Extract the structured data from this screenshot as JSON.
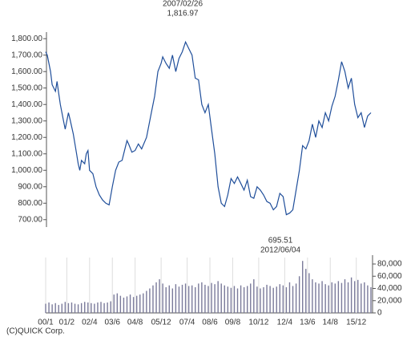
{
  "chart_data": [
    {
      "type": "line",
      "color": "#1f4e9a",
      "annotations": [
        {
          "lines": [
            "2007/02/26",
            "1,816.97"
          ]
        }
      ],
      "x": [
        0,
        1,
        3,
        4,
        6,
        7,
        8,
        9,
        11,
        12,
        14,
        15,
        17,
        19,
        20,
        21,
        22,
        24,
        25,
        26,
        27,
        29,
        31,
        33,
        35,
        37,
        39,
        41,
        43,
        45,
        47,
        48,
        50,
        51,
        53,
        55,
        57,
        59,
        62,
        65,
        67,
        69,
        71,
        72,
        74,
        76,
        78,
        80,
        82,
        84,
        86,
        88,
        90,
        92,
        94,
        96,
        98,
        100,
        102,
        104,
        106,
        108,
        110,
        112,
        114,
        116,
        118,
        120,
        122,
        124,
        126,
        128,
        130,
        132,
        134,
        136,
        138,
        140,
        142,
        144,
        146,
        148,
        150,
        152,
        154,
        156,
        158,
        160,
        162,
        164,
        166,
        168,
        170,
        172,
        174,
        176,
        178,
        180,
        182,
        184,
        186,
        188,
        190,
        192,
        194,
        196,
        198,
        200
      ],
      "values": [
        1720,
        1700,
        1600,
        1520,
        1480,
        1540,
        1470,
        1400,
        1300,
        1250,
        1350,
        1310,
        1220,
        1100,
        1040,
        1000,
        1060,
        1040,
        1100,
        1120,
        1000,
        980,
        900,
        850,
        820,
        800,
        790,
        900,
        1000,
        1050,
        1060,
        1100,
        1180,
        1160,
        1110,
        1120,
        1160,
        1130,
        1200,
        1350,
        1450,
        1600,
        1650,
        1690,
        1650,
        1620,
        1700,
        1600,
        1680,
        1720,
        1780,
        1740,
        1700,
        1560,
        1550,
        1400,
        1350,
        1400,
        1250,
        1100,
        900,
        800,
        780,
        850,
        950,
        920,
        960,
        920,
        880,
        940,
        840,
        830,
        900,
        880,
        850,
        810,
        800,
        760,
        780,
        860,
        840,
        730,
        740,
        760,
        880,
        1000,
        1150,
        1130,
        1180,
        1280,
        1200,
        1300,
        1260,
        1350,
        1300,
        1390,
        1450,
        1550,
        1660,
        1600,
        1500,
        1560,
        1400,
        1320,
        1350,
        1260,
        1330,
        1350
      ],
      "xlim": [
        0,
        201
      ],
      "ylim": [
        655,
        1840
      ],
      "yticks": [
        {
          "value": 700,
          "label": "700.00"
        },
        {
          "value": 800,
          "label": "800.00"
        },
        {
          "value": 900,
          "label": "900.00"
        },
        {
          "value": 1000,
          "label": "1,000.00"
        },
        {
          "value": 1100,
          "label": "1,100.00"
        },
        {
          "value": 1200,
          "label": "1,200.00"
        },
        {
          "value": 1300,
          "label": "1,300.00"
        },
        {
          "value": 1400,
          "label": "1,400.00"
        },
        {
          "value": 1500,
          "label": "1,500.00"
        },
        {
          "value": 1600,
          "label": "1,600.00"
        },
        {
          "value": 1700,
          "label": "1,700.00"
        },
        {
          "value": 1800,
          "label": "1,800.00"
        }
      ]
    },
    {
      "type": "bar",
      "color": "#7a7a9a",
      "annotations": [
        {
          "lines": [
            "695.51",
            "2012/06/04"
          ]
        }
      ],
      "x": [
        0,
        2,
        4,
        6,
        8,
        10,
        12,
        14,
        16,
        18,
        20,
        22,
        24,
        26,
        28,
        30,
        32,
        34,
        36,
        38,
        40,
        42,
        44,
        46,
        48,
        50,
        52,
        54,
        56,
        58,
        60,
        62,
        64,
        66,
        68,
        70,
        72,
        74,
        76,
        78,
        80,
        82,
        84,
        86,
        88,
        90,
        92,
        94,
        96,
        98,
        100,
        102,
        104,
        106,
        108,
        110,
        112,
        114,
        116,
        118,
        120,
        122,
        124,
        126,
        128,
        130,
        132,
        134,
        136,
        138,
        140,
        142,
        144,
        146,
        148,
        150,
        152,
        154,
        156,
        158,
        160,
        162,
        164,
        166,
        168,
        170,
        172,
        174,
        176,
        178,
        180,
        182,
        184,
        186,
        188,
        190,
        192,
        194,
        196,
        198,
        200
      ],
      "values": [
        15000,
        17000,
        14000,
        16000,
        13000,
        15000,
        18000,
        16000,
        17000,
        15000,
        14000,
        16000,
        18000,
        17000,
        16000,
        15000,
        17000,
        18000,
        16000,
        17000,
        19000,
        30000,
        32000,
        28000,
        25000,
        27000,
        30000,
        26000,
        28000,
        30000,
        32000,
        36000,
        40000,
        45000,
        50000,
        55000,
        48000,
        42000,
        45000,
        40000,
        47000,
        43000,
        46000,
        48000,
        44000,
        45000,
        42000,
        48000,
        50000,
        46000,
        44000,
        49000,
        47000,
        52000,
        48000,
        45000,
        43000,
        41000,
        44000,
        40000,
        45000,
        42000,
        44000,
        48000,
        55000,
        43000,
        40000,
        42000,
        46000,
        44000,
        41000,
        43000,
        47000,
        45000,
        42000,
        50000,
        44000,
        48000,
        60000,
        85000,
        72000,
        65000,
        55000,
        50000,
        48000,
        52000,
        47000,
        45000,
        50000,
        48000,
        52000,
        49000,
        55000,
        50000,
        58000,
        52000,
        54000,
        48000,
        50000,
        45000,
        42000
      ],
      "xlim": [
        0,
        201
      ],
      "ylim": [
        0,
        90000
      ],
      "yticks": [
        0,
        {
          "value": 20000,
          "label": "20,000"
        },
        {
          "value": 40000,
          "label": "40,000"
        },
        {
          "value": 60000,
          "label": "60,000"
        },
        {
          "value": 80000,
          "label": "80,000"
        }
      ],
      "xticks": [
        {
          "value": 0,
          "label": "00/1"
        },
        {
          "value": 13,
          "label": "01/2"
        },
        {
          "value": 27,
          "label": "02/4"
        },
        {
          "value": 41,
          "label": "03/6"
        },
        {
          "value": 55,
          "label": "04/8"
        },
        {
          "value": 71,
          "label": "05/12"
        },
        {
          "value": 87,
          "label": "07/4"
        },
        {
          "value": 101,
          "label": "08/6"
        },
        {
          "value": 115,
          "label": "09/8"
        },
        {
          "value": 131,
          "label": "10/12"
        },
        {
          "value": 147,
          "label": "12/4"
        },
        {
          "value": 161,
          "label": "13/6"
        },
        {
          "value": 175,
          "label": "14/8"
        },
        {
          "value": 191,
          "label": "15/12"
        }
      ],
      "footer": "(C)QUICK Corp."
    }
  ]
}
